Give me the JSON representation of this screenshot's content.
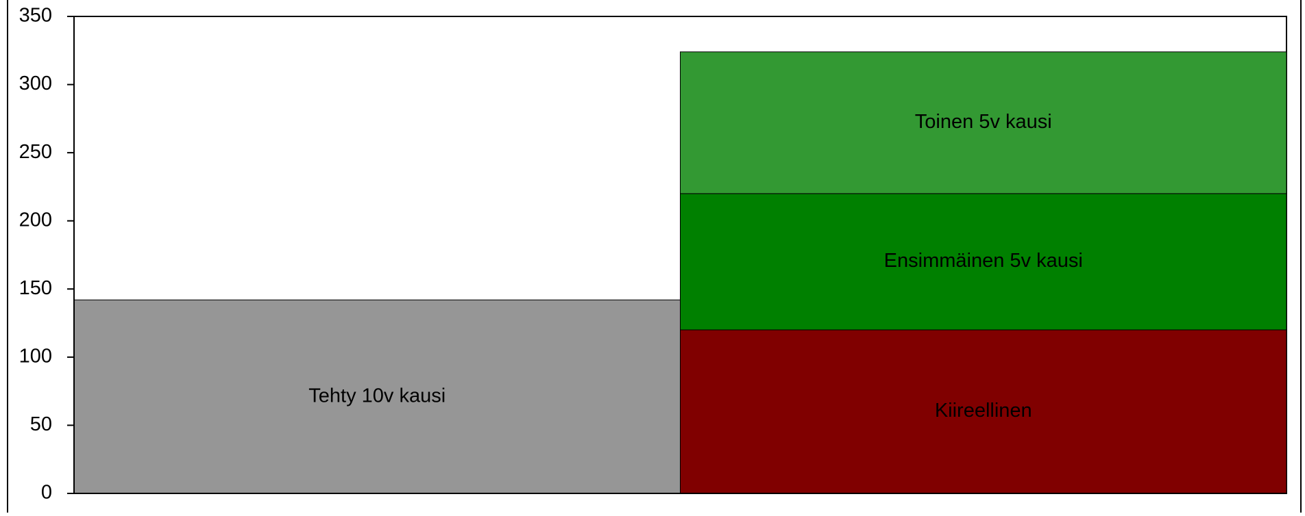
{
  "chart_data": {
    "type": "stacked_bar",
    "categories": [
      null,
      null
    ],
    "series": [
      {
        "name": "Tehty 10v kausi",
        "color": "#969696",
        "values": [
          142,
          null
        ]
      },
      {
        "name": "Kiireellinen",
        "color": "#800000",
        "values": [
          null,
          120
        ]
      },
      {
        "name": "Ensimmäinen 5v kausi",
        "color": "#008000",
        "values": [
          null,
          100
        ]
      },
      {
        "name": "Toinen 5v kausi",
        "color": "#339933",
        "values": [
          null,
          104
        ]
      }
    ],
    "ylim": [
      0,
      350
    ],
    "yticks": [
      0,
      50,
      100,
      150,
      200,
      250,
      300,
      350
    ]
  }
}
